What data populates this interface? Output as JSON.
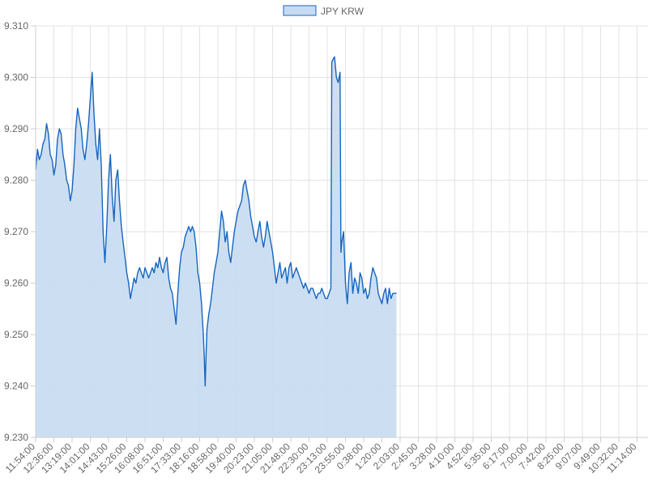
{
  "chart_data": {
    "type": "area",
    "legend": {
      "position": "top",
      "label": "JPY KRW"
    },
    "colors": {
      "line": "#1565c0",
      "fill": "#c6dbf1",
      "grid": "#e3e3e3",
      "text": "#666666"
    },
    "grid": true,
    "ylim": [
      9.23,
      9.31
    ],
    "y_ticks": [
      "9.310",
      "9.300",
      "9.290",
      "9.280",
      "9.270",
      "9.260",
      "9.250",
      "9.240",
      "9.230"
    ],
    "x_ticks": [
      "11:54:00",
      "12:36:00",
      "13:19:00",
      "14:01:00",
      "14:43:00",
      "15:26:00",
      "16:08:00",
      "16:51:00",
      "17:33:00",
      "18:16:00",
      "18:58:00",
      "19:40:00",
      "20:23:00",
      "21:05:00",
      "21:48:00",
      "22:30:00",
      "23:13:00",
      "23:55:00",
      "0:38:00",
      "1:20:00",
      "2:03:00",
      "2:45:00",
      "3:28:00",
      "4:10:00",
      "4:52:00",
      "5:35:00",
      "6:17:00",
      "7:00:00",
      "7:42:00",
      "8:25:00",
      "9:07:00",
      "9:49:00",
      "10:32:00",
      "11:14:00"
    ],
    "series": [
      {
        "name": "JPY KRW",
        "points": [
          [
            0.0,
            9.282
          ],
          [
            0.1,
            9.286
          ],
          [
            0.2,
            9.284
          ],
          [
            0.3,
            9.285
          ],
          [
            0.4,
            9.287
          ],
          [
            0.5,
            9.288
          ],
          [
            0.6,
            9.291
          ],
          [
            0.7,
            9.289
          ],
          [
            0.8,
            9.285
          ],
          [
            0.9,
            9.284
          ],
          [
            1.0,
            9.281
          ],
          [
            1.1,
            9.283
          ],
          [
            1.2,
            9.288
          ],
          [
            1.3,
            9.29
          ],
          [
            1.4,
            9.289
          ],
          [
            1.5,
            9.285
          ],
          [
            1.6,
            9.283
          ],
          [
            1.7,
            9.28
          ],
          [
            1.8,
            9.279
          ],
          [
            1.9,
            9.276
          ],
          [
            2.0,
            9.278
          ],
          [
            2.1,
            9.283
          ],
          [
            2.2,
            9.29
          ],
          [
            2.3,
            9.294
          ],
          [
            2.4,
            9.292
          ],
          [
            2.5,
            9.29
          ],
          [
            2.6,
            9.286
          ],
          [
            2.7,
            9.284
          ],
          [
            2.8,
            9.287
          ],
          [
            2.9,
            9.291
          ],
          [
            3.0,
            9.296
          ],
          [
            3.1,
            9.301
          ],
          [
            3.2,
            9.293
          ],
          [
            3.3,
            9.287
          ],
          [
            3.4,
            9.284
          ],
          [
            3.5,
            9.29
          ],
          [
            3.6,
            9.283
          ],
          [
            3.7,
            9.27
          ],
          [
            3.8,
            9.264
          ],
          [
            3.9,
            9.271
          ],
          [
            4.0,
            9.28
          ],
          [
            4.1,
            9.285
          ],
          [
            4.2,
            9.277
          ],
          [
            4.3,
            9.272
          ],
          [
            4.4,
            9.28
          ],
          [
            4.5,
            9.282
          ],
          [
            4.6,
            9.276
          ],
          [
            4.7,
            9.271
          ],
          [
            4.8,
            9.268
          ],
          [
            4.9,
            9.265
          ],
          [
            5.0,
            9.262
          ],
          [
            5.1,
            9.26
          ],
          [
            5.2,
            9.257
          ],
          [
            5.3,
            9.259
          ],
          [
            5.4,
            9.261
          ],
          [
            5.5,
            9.26
          ],
          [
            5.6,
            9.262
          ],
          [
            5.7,
            9.263
          ],
          [
            5.8,
            9.262
          ],
          [
            5.9,
            9.261
          ],
          [
            6.0,
            9.263
          ],
          [
            6.1,
            9.262
          ],
          [
            6.2,
            9.261
          ],
          [
            6.3,
            9.262
          ],
          [
            6.4,
            9.263
          ],
          [
            6.5,
            9.262
          ],
          [
            6.6,
            9.264
          ],
          [
            6.7,
            9.263
          ],
          [
            6.8,
            9.265
          ],
          [
            6.9,
            9.263
          ],
          [
            7.0,
            9.262
          ],
          [
            7.1,
            9.264
          ],
          [
            7.2,
            9.265
          ],
          [
            7.3,
            9.261
          ],
          [
            7.4,
            9.259
          ],
          [
            7.5,
            9.258
          ],
          [
            7.6,
            9.255
          ],
          [
            7.7,
            9.252
          ],
          [
            7.8,
            9.258
          ],
          [
            7.9,
            9.263
          ],
          [
            8.0,
            9.266
          ],
          [
            8.1,
            9.267
          ],
          [
            8.2,
            9.269
          ],
          [
            8.3,
            9.27
          ],
          [
            8.4,
            9.271
          ],
          [
            8.5,
            9.27
          ],
          [
            8.6,
            9.271
          ],
          [
            8.7,
            9.27
          ],
          [
            8.8,
            9.267
          ],
          [
            8.9,
            9.262
          ],
          [
            9.0,
            9.26
          ],
          [
            9.1,
            9.256
          ],
          [
            9.2,
            9.25
          ],
          [
            9.25,
            9.246
          ],
          [
            9.3,
            9.24
          ],
          [
            9.35,
            9.246
          ],
          [
            9.4,
            9.251
          ],
          [
            9.5,
            9.254
          ],
          [
            9.6,
            9.256
          ],
          [
            9.7,
            9.259
          ],
          [
            9.8,
            9.262
          ],
          [
            9.9,
            9.264
          ],
          [
            10.0,
            9.266
          ],
          [
            10.1,
            9.27
          ],
          [
            10.2,
            9.274
          ],
          [
            10.3,
            9.272
          ],
          [
            10.4,
            9.268
          ],
          [
            10.5,
            9.27
          ],
          [
            10.6,
            9.266
          ],
          [
            10.7,
            9.264
          ],
          [
            10.8,
            9.267
          ],
          [
            10.9,
            9.27
          ],
          [
            11.0,
            9.272
          ],
          [
            11.1,
            9.274
          ],
          [
            11.2,
            9.275
          ],
          [
            11.3,
            9.276
          ],
          [
            11.4,
            9.279
          ],
          [
            11.5,
            9.28
          ],
          [
            11.6,
            9.278
          ],
          [
            11.7,
            9.276
          ],
          [
            11.8,
            9.273
          ],
          [
            11.9,
            9.271
          ],
          [
            12.0,
            9.269
          ],
          [
            12.1,
            9.268
          ],
          [
            12.2,
            9.27
          ],
          [
            12.3,
            9.272
          ],
          [
            12.4,
            9.269
          ],
          [
            12.5,
            9.267
          ],
          [
            12.6,
            9.269
          ],
          [
            12.7,
            9.272
          ],
          [
            12.8,
            9.27
          ],
          [
            12.9,
            9.268
          ],
          [
            13.0,
            9.266
          ],
          [
            13.1,
            9.263
          ],
          [
            13.2,
            9.26
          ],
          [
            13.3,
            9.262
          ],
          [
            13.4,
            9.264
          ],
          [
            13.5,
            9.261
          ],
          [
            13.6,
            9.262
          ],
          [
            13.7,
            9.263
          ],
          [
            13.8,
            9.26
          ],
          [
            13.9,
            9.263
          ],
          [
            14.0,
            9.264
          ],
          [
            14.1,
            9.261
          ],
          [
            14.2,
            9.262
          ],
          [
            14.3,
            9.263
          ],
          [
            14.4,
            9.262
          ],
          [
            14.5,
            9.261
          ],
          [
            14.6,
            9.26
          ],
          [
            14.7,
            9.259
          ],
          [
            14.8,
            9.26
          ],
          [
            14.9,
            9.259
          ],
          [
            15.0,
            9.258
          ],
          [
            15.1,
            9.259
          ],
          [
            15.2,
            9.259
          ],
          [
            15.3,
            9.258
          ],
          [
            15.4,
            9.257
          ],
          [
            15.5,
            9.258
          ],
          [
            15.6,
            9.258
          ],
          [
            15.7,
            9.259
          ],
          [
            15.8,
            9.258
          ],
          [
            15.9,
            9.257
          ],
          [
            16.0,
            9.257
          ],
          [
            16.1,
            9.258
          ],
          [
            16.2,
            9.259
          ],
          [
            16.25,
            9.303
          ],
          [
            16.4,
            9.304
          ],
          [
            16.5,
            9.3
          ],
          [
            16.6,
            9.299
          ],
          [
            16.7,
            9.301
          ],
          [
            16.75,
            9.266
          ],
          [
            16.8,
            9.268
          ],
          [
            16.9,
            9.27
          ],
          [
            17.0,
            9.26
          ],
          [
            17.1,
            9.256
          ],
          [
            17.2,
            9.262
          ],
          [
            17.3,
            9.264
          ],
          [
            17.4,
            9.258
          ],
          [
            17.5,
            9.261
          ],
          [
            17.6,
            9.26
          ],
          [
            17.7,
            9.258
          ],
          [
            17.8,
            9.262
          ],
          [
            17.9,
            9.261
          ],
          [
            18.0,
            9.258
          ],
          [
            18.1,
            9.259
          ],
          [
            18.2,
            9.257
          ],
          [
            18.3,
            9.258
          ],
          [
            18.4,
            9.261
          ],
          [
            18.5,
            9.263
          ],
          [
            18.6,
            9.262
          ],
          [
            18.7,
            9.261
          ],
          [
            18.8,
            9.258
          ],
          [
            18.9,
            9.257
          ],
          [
            19.0,
            9.256
          ],
          [
            19.1,
            9.258
          ],
          [
            19.2,
            9.259
          ],
          [
            19.3,
            9.256
          ],
          [
            19.4,
            9.259
          ],
          [
            19.5,
            9.257
          ],
          [
            19.6,
            9.258
          ],
          [
            19.7,
            9.258
          ],
          [
            19.8,
            9.258
          ]
        ]
      }
    ]
  }
}
